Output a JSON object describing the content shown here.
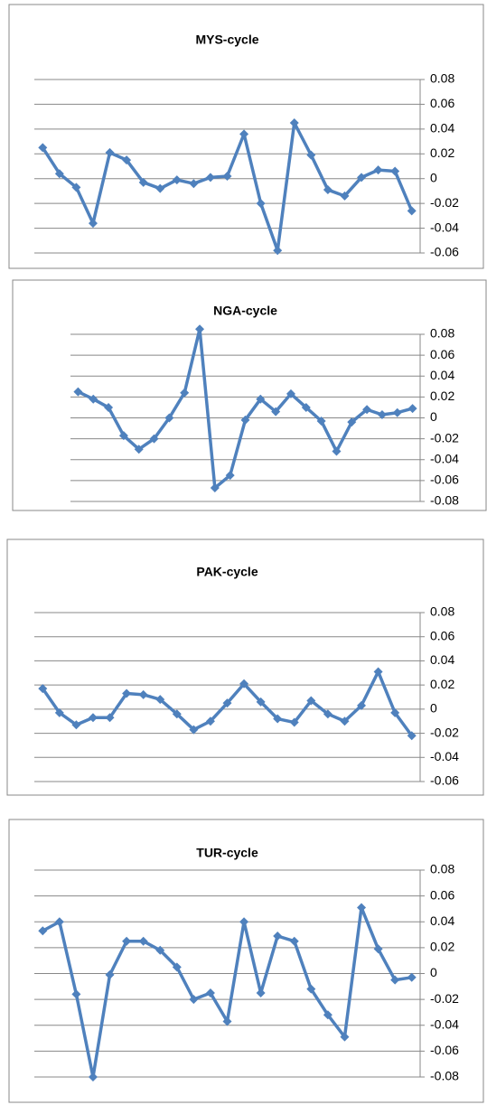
{
  "chart_data": [
    {
      "type": "line",
      "title": "MYS-cycle",
      "categories": [
        null,
        null,
        null,
        null,
        null,
        null,
        null,
        null,
        null,
        null,
        null,
        null,
        null,
        null,
        null,
        null,
        null,
        null,
        null,
        null,
        null,
        null,
        null
      ],
      "series": [
        {
          "color": "#4f81bd",
          "values": [
            0.025,
            0.004,
            -0.007,
            -0.036,
            0.021,
            0.015,
            -0.003,
            -0.008,
            -0.001,
            -0.004,
            0.001,
            0.002,
            0.036,
            -0.02,
            -0.058,
            0.045,
            0.019,
            -0.009,
            -0.014,
            0.001,
            0.007,
            0.006,
            -0.026
          ]
        }
      ],
      "ylim": [
        -0.06,
        0.08
      ],
      "yticks": [
        0.08,
        0.06,
        0.04,
        0.02,
        0,
        -0.02,
        -0.04,
        -0.06
      ],
      "grid": true
    },
    {
      "type": "line",
      "title": "NGA-cycle",
      "categories": [
        null,
        null,
        null,
        null,
        null,
        null,
        null,
        null,
        null,
        null,
        null,
        null,
        null,
        null,
        null,
        null,
        null,
        null,
        null,
        null,
        null,
        null,
        null
      ],
      "series": [
        {
          "color": "#4f81bd",
          "values": [
            0.025,
            0.018,
            0.01,
            -0.017,
            -0.03,
            -0.02,
            0,
            0.024,
            0.085,
            -0.067,
            -0.055,
            -0.002,
            0.018,
            0.006,
            0.023,
            0.01,
            -0.003,
            -0.032,
            -0.004,
            0.008,
            0.003,
            0.005,
            0.009
          ]
        }
      ],
      "ylim": [
        -0.08,
        0.08
      ],
      "yticks": [
        0.08,
        0.06,
        0.04,
        0.02,
        0,
        -0.02,
        -0.04,
        -0.06,
        -0.08
      ],
      "grid": true
    },
    {
      "type": "line",
      "title": "PAK-cycle",
      "categories": [
        null,
        null,
        null,
        null,
        null,
        null,
        null,
        null,
        null,
        null,
        null,
        null,
        null,
        null,
        null,
        null,
        null,
        null,
        null,
        null,
        null,
        null,
        null
      ],
      "series": [
        {
          "color": "#4f81bd",
          "values": [
            0.017,
            -0.003,
            -0.013,
            -0.007,
            -0.007,
            0.013,
            0.012,
            0.008,
            -0.004,
            -0.017,
            -0.01,
            0.005,
            0.021,
            0.006,
            -0.008,
            -0.011,
            0.007,
            -0.004,
            -0.01,
            0.003,
            0.031,
            -0.003,
            -0.022
          ]
        }
      ],
      "ylim": [
        -0.06,
        0.08
      ],
      "yticks": [
        0.08,
        0.06,
        0.04,
        0.02,
        0,
        -0.02,
        -0.04,
        -0.06
      ],
      "grid": true
    },
    {
      "type": "line",
      "title": "TUR-cycle",
      "categories": [
        null,
        null,
        null,
        null,
        null,
        null,
        null,
        null,
        null,
        null,
        null,
        null,
        null,
        null,
        null,
        null,
        null,
        null,
        null,
        null,
        null,
        null,
        null
      ],
      "series": [
        {
          "color": "#4f81bd",
          "values": [
            0.033,
            0.04,
            -0.016,
            -0.08,
            -0.001,
            0.025,
            0.025,
            0.018,
            0.005,
            -0.02,
            -0.015,
            -0.037,
            0.04,
            -0.015,
            0.029,
            0.025,
            -0.012,
            -0.032,
            -0.049,
            0.051,
            0.019,
            -0.005,
            -0.003
          ]
        }
      ],
      "ylim": [
        -0.08,
        0.08
      ],
      "yticks": [
        0.08,
        0.06,
        0.04,
        0.02,
        0,
        -0.02,
        -0.04,
        -0.06,
        -0.08
      ],
      "grid": true
    }
  ]
}
